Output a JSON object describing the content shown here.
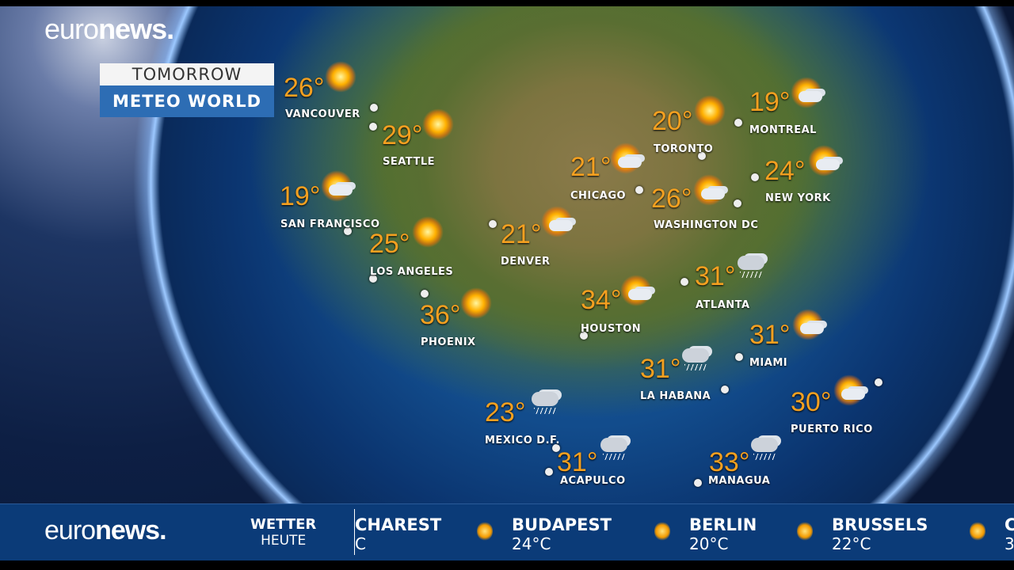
{
  "brand": {
    "logo_light": "euro",
    "logo_bold": "news."
  },
  "header": {
    "line1": "TOMORROW",
    "line2": "METEO WORLD"
  },
  "cities": [
    {
      "name": "VANCOUVER",
      "temp": "26°",
      "icon": "sun"
    },
    {
      "name": "SEATTLE",
      "temp": "29°",
      "icon": "sun"
    },
    {
      "name": "SAN FRANCISCO",
      "temp": "19°",
      "icon": "sun-cloud"
    },
    {
      "name": "LOS ANGELES",
      "temp": "25°",
      "icon": "sun"
    },
    {
      "name": "PHOENIX",
      "temp": "36°",
      "icon": "sun"
    },
    {
      "name": "DENVER",
      "temp": "21°",
      "icon": "sun-cloud"
    },
    {
      "name": "CHICAGO",
      "temp": "21°",
      "icon": "sun-cloud"
    },
    {
      "name": "TORONTO",
      "temp": "20°",
      "icon": "sun"
    },
    {
      "name": "MONTREAL",
      "temp": "19°",
      "icon": "sun-cloud"
    },
    {
      "name": "NEW YORK",
      "temp": "24°",
      "icon": "sun-cloud"
    },
    {
      "name": "WASHINGTON DC",
      "temp": "26°",
      "icon": "sun-cloud"
    },
    {
      "name": "ATLANTA",
      "temp": "31°",
      "icon": "cloud-rain"
    },
    {
      "name": "HOUSTON",
      "temp": "34°",
      "icon": "sun-cloud"
    },
    {
      "name": "MIAMI",
      "temp": "31°",
      "icon": "sun-cloud"
    },
    {
      "name": "LA HABANA",
      "temp": "31°",
      "icon": "cloud-rain"
    },
    {
      "name": "PUERTO RICO",
      "temp": "30°",
      "icon": "sun-cloud"
    },
    {
      "name": "MEXICO D.F.",
      "temp": "23°",
      "icon": "cloud-rain"
    },
    {
      "name": "ACAPULCO",
      "temp": "31°",
      "icon": "cloud-rain"
    },
    {
      "name": "MANAGUA",
      "temp": "33°",
      "icon": "cloud-rain"
    }
  ],
  "ticker": {
    "heading": "WETTER",
    "subheading": "HEUTE",
    "items": [
      {
        "city": "CHAREST",
        "temp": "C"
      },
      {
        "city": "BUDAPEST",
        "temp": "24°C",
        "icon": "sun"
      },
      {
        "city": "BERLIN",
        "temp": "20°C",
        "icon": "sun"
      },
      {
        "city": "BRUSSELS",
        "temp": "22°C",
        "icon": "sun-cloud"
      },
      {
        "city": "C",
        "temp": "3",
        "icon": "sun-cloud"
      }
    ]
  }
}
